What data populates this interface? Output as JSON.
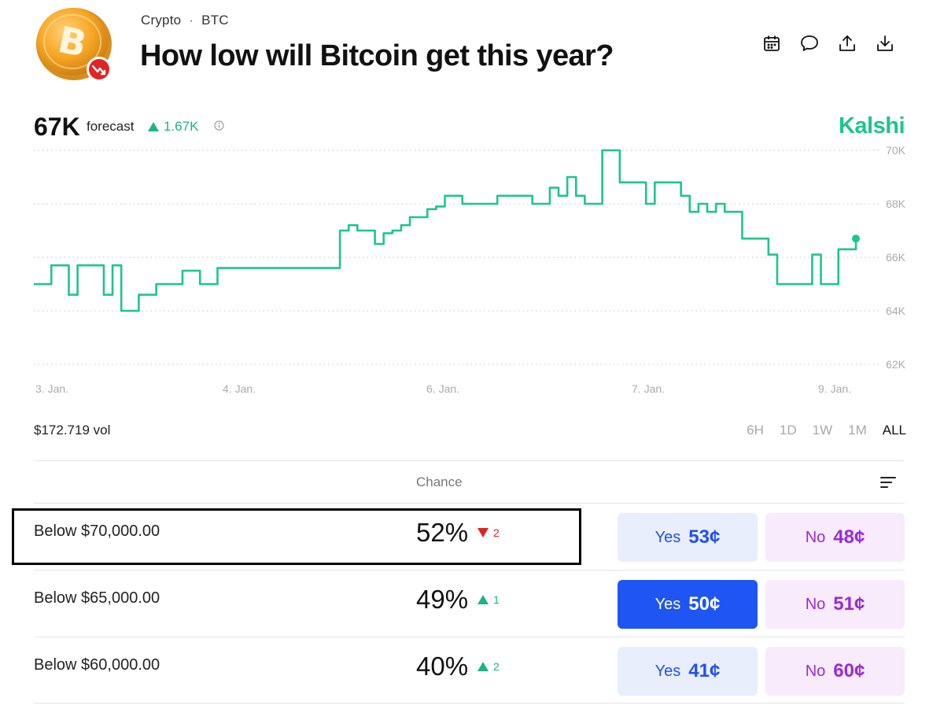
{
  "breadcrumb": {
    "category": "Crypto",
    "separator": "·",
    "subcategory": "BTC"
  },
  "title": "How low will Bitcoin get this year?",
  "actions": [
    {
      "name": "calendar-icon"
    },
    {
      "name": "comment-icon"
    },
    {
      "name": "share-icon"
    },
    {
      "name": "download-icon"
    }
  ],
  "forecast": {
    "value": "67K",
    "label": "forecast",
    "delta": "1.67K",
    "delta_direction": "up"
  },
  "brand": "Kalshi",
  "colors": {
    "line": "#1ec48e",
    "up": "#1db386",
    "down": "#dd2222",
    "yes": "#2150f0",
    "no": "#9a2bd4"
  },
  "chart_data": {
    "type": "line",
    "y_ticks": [
      "70K",
      "68K",
      "66K",
      "64K",
      "62K"
    ],
    "x_ticks": [
      "3. Jan.",
      "4. Jan.",
      "6. Jan.",
      "7. Jan.",
      "9. Jan."
    ],
    "ylim": [
      62000,
      70000
    ],
    "grid": true,
    "series": [
      {
        "values": [
          65000,
          65000,
          65700,
          65700,
          64600,
          65700,
          65700,
          65700,
          64600,
          65700,
          64000,
          64000,
          64600,
          64600,
          65000,
          65000,
          65000,
          65500,
          65500,
          65000,
          65000,
          65600,
          65600,
          65600,
          65600,
          65600,
          65600,
          65600,
          65600,
          65600,
          65600,
          65600,
          65600,
          65600,
          65600,
          67000,
          67200,
          67000,
          67000,
          66500,
          66900,
          67000,
          67200,
          67500,
          67500,
          67800,
          67900,
          68300,
          68300,
          68000,
          68000,
          68000,
          68000,
          68300,
          68300,
          68300,
          68300,
          68000,
          68000,
          68600,
          68300,
          69000,
          68300,
          68000,
          68000,
          70000,
          70000,
          68800,
          68800,
          68800,
          68000,
          68800,
          68800,
          68800,
          68300,
          67700,
          68000,
          67700,
          68000,
          67700,
          67700,
          66700,
          66700,
          66700,
          66100,
          65000,
          65000,
          65000,
          65000,
          66100,
          65000,
          65000,
          66300,
          66300,
          66700
        ]
      }
    ]
  },
  "volume": "$172.719 vol",
  "time_ranges": [
    {
      "label": "6H",
      "active": false
    },
    {
      "label": "1D",
      "active": false
    },
    {
      "label": "1W",
      "active": false
    },
    {
      "label": "1M",
      "active": false
    },
    {
      "label": "ALL",
      "active": true
    }
  ],
  "table": {
    "header": "Chance",
    "rows": [
      {
        "label": "Below $70,000.00",
        "chance": "52%",
        "change": "2",
        "direction": "down",
        "yes_label": "Yes",
        "yes_price": "53¢",
        "no_label": "No",
        "no_price": "48¢",
        "yes_active": false
      },
      {
        "label": "Below $65,000.00",
        "chance": "49%",
        "change": "1",
        "direction": "up",
        "yes_label": "Yes",
        "yes_price": "50¢",
        "no_label": "No",
        "no_price": "51¢",
        "yes_active": true
      },
      {
        "label": "Below $60,000.00",
        "chance": "40%",
        "change": "2",
        "direction": "up",
        "yes_label": "Yes",
        "yes_price": "41¢",
        "no_label": "No",
        "no_price": "60¢",
        "yes_active": false
      }
    ]
  }
}
